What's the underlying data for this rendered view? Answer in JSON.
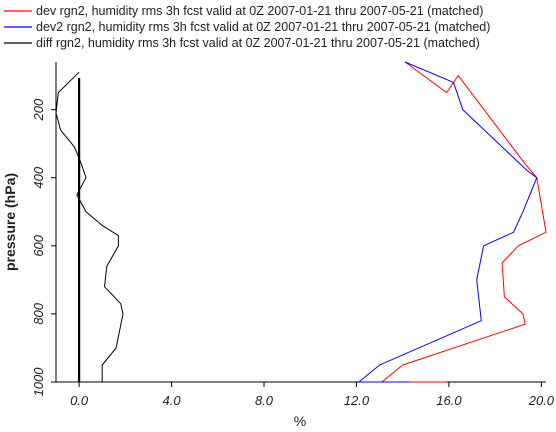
{
  "chart_data": {
    "type": "line",
    "xlabel": "%",
    "ylabel": "pressure (hPa)",
    "xlim": [
      -1.0,
      20.2
    ],
    "ylim": [
      1000,
      60
    ],
    "y_inverted": true,
    "x_ticks": [
      0.0,
      4.0,
      8.0,
      12.0,
      16.0,
      20.0
    ],
    "x_tick_labels": [
      "0.0",
      "4.0",
      "8.0",
      "12.0",
      "16.0",
      "20.0"
    ],
    "y_ticks": [
      200,
      400,
      600,
      800,
      1000
    ],
    "y_tick_labels": [
      "200",
      "400",
      "600",
      "800",
      "1000"
    ],
    "zero_line_x": 0.0,
    "legend_position": "top",
    "series": [
      {
        "name": "dev rgn2, humidity rms 3h fcst valid at 0Z 2007-01-21 thru 2007-05-21 (matched)",
        "color": "#ff0000",
        "points": [
          [
            14.1,
            60
          ],
          [
            15.9,
            150
          ],
          [
            16.4,
            100
          ],
          [
            19.3,
            360
          ],
          [
            19.8,
            400
          ],
          [
            20.2,
            560
          ],
          [
            19.0,
            600
          ],
          [
            18.3,
            650
          ],
          [
            18.4,
            750
          ],
          [
            19.2,
            800
          ],
          [
            19.3,
            830
          ],
          [
            14.0,
            950
          ],
          [
            13.1,
            1000
          ],
          [
            15.9,
            1000
          ]
        ]
      },
      {
        "name": "dev2 rgn2, humidity rms 3h fcst valid at 0Z 2007-01-21 thru 2007-05-21 (matched)",
        "color": "#0000ff",
        "points": [
          [
            14.1,
            60
          ],
          [
            16.2,
            120
          ],
          [
            16.6,
            200
          ],
          [
            19.4,
            380
          ],
          [
            19.8,
            400
          ],
          [
            19.2,
            500
          ],
          [
            18.8,
            560
          ],
          [
            17.5,
            600
          ],
          [
            17.2,
            700
          ],
          [
            17.4,
            820
          ],
          [
            13.0,
            950
          ],
          [
            12.1,
            1000
          ],
          [
            14.3,
            1000
          ]
        ]
      },
      {
        "name": "diff rgn2, humidity rms 3h fcst valid at 0Z 2007-01-21 thru 2007-05-21 (matched)",
        "color": "#000000",
        "points": [
          [
            0.0,
            90
          ],
          [
            -0.9,
            150
          ],
          [
            -1.0,
            210
          ],
          [
            -0.8,
            260
          ],
          [
            -0.2,
            310
          ],
          [
            0.1,
            360
          ],
          [
            0.3,
            400
          ],
          [
            -0.1,
            450
          ],
          [
            0.3,
            500
          ],
          [
            1.0,
            540
          ],
          [
            1.7,
            570
          ],
          [
            1.7,
            600
          ],
          [
            1.2,
            660
          ],
          [
            1.1,
            720
          ],
          [
            1.8,
            770
          ],
          [
            1.9,
            800
          ],
          [
            1.6,
            900
          ],
          [
            1.0,
            950
          ],
          [
            1.0,
            1000
          ],
          [
            1.4,
            1000
          ]
        ]
      }
    ]
  }
}
